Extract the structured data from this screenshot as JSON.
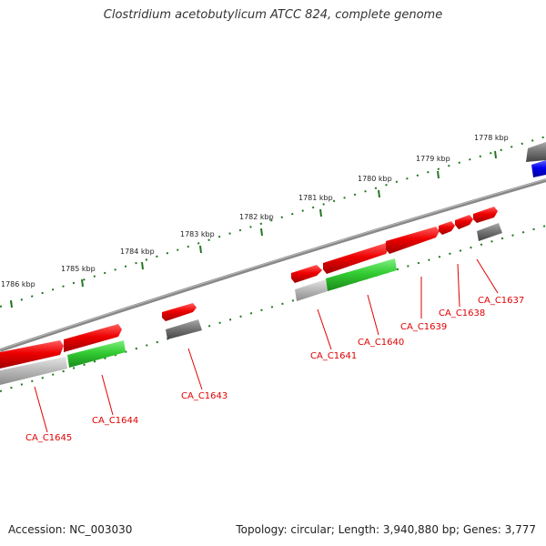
{
  "title": "Clostridium acetobutylicum ATCC 824, complete genome",
  "accession": "Accession: NC_003030",
  "summary": "Topology: circular; Length: 3,940,880 bp; Genes: 3,777",
  "kbp_labels": [
    "1786 kbp",
    "1785 kbp",
    "1784 kbp",
    "1783 kbp",
    "1782 kbp",
    "1781 kbp",
    "1780 kbp",
    "1779 kbp",
    "1778 kbp"
  ],
  "locus_labels": [
    "CA_C1645",
    "CA_C1644",
    "CA_C1643",
    "CA_C1641",
    "CA_C1640",
    "CA_C1639",
    "CA_C1638",
    "CA_C1637"
  ],
  "colors": {
    "cds_forward": "#ee0000",
    "functional_green": "#33cc33",
    "grey_track": "#777777",
    "light_grey_track": "#bbbbbb",
    "blue_track": "#0000ee",
    "tick_green": "#227722",
    "backbone": "#888888",
    "label_red": "#e00000"
  }
}
